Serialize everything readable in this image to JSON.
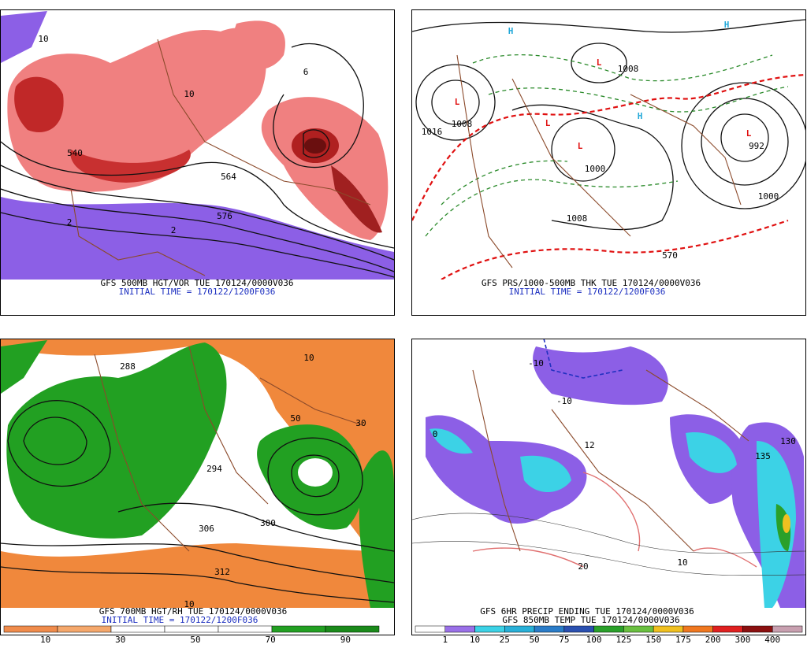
{
  "panels": [
    {
      "caption_lines": [
        "GFS 500MB HGT/VOR TUE 170124/0000V036",
        "INITIAL TIME = 170122/1200F036"
      ],
      "labels": [
        "576",
        "564",
        "540",
        "6",
        "10",
        "2",
        "2",
        "10"
      ]
    },
    {
      "caption_lines": [
        "GFS PRS/1000-500MB THK TUE 170124/0000V036",
        "INITIAL TIME = 170122/1200F036"
      ],
      "labels": [
        "H",
        "H",
        "H",
        "L",
        "L",
        "L",
        "L",
        "L",
        "1008",
        "1008",
        "992",
        "1000",
        "1000",
        "1008",
        "570",
        "1016"
      ]
    },
    {
      "caption_lines": [
        "GFS 700MB HGT/RH TUE 170124/0000V036",
        "INITIAL TIME = 170122/1200F036"
      ],
      "labels": [
        "288",
        "300",
        "306",
        "312",
        "294",
        "10",
        "50",
        "10",
        "30"
      ],
      "colorbar": [
        10,
        30,
        50,
        70,
        90
      ]
    },
    {
      "caption_lines": [
        "GFS 6HR PRECIP ENDING TUE 170124/0000V036",
        "GFS 850MB TEMP TUE 170124/0000V036"
      ],
      "labels": [
        "-10",
        "-10",
        "135",
        "130",
        "20",
        "10",
        "0",
        "12"
      ],
      "colorbar": [
        1,
        10,
        25,
        50,
        75,
        100,
        125,
        150,
        175,
        200,
        300,
        400
      ]
    }
  ]
}
